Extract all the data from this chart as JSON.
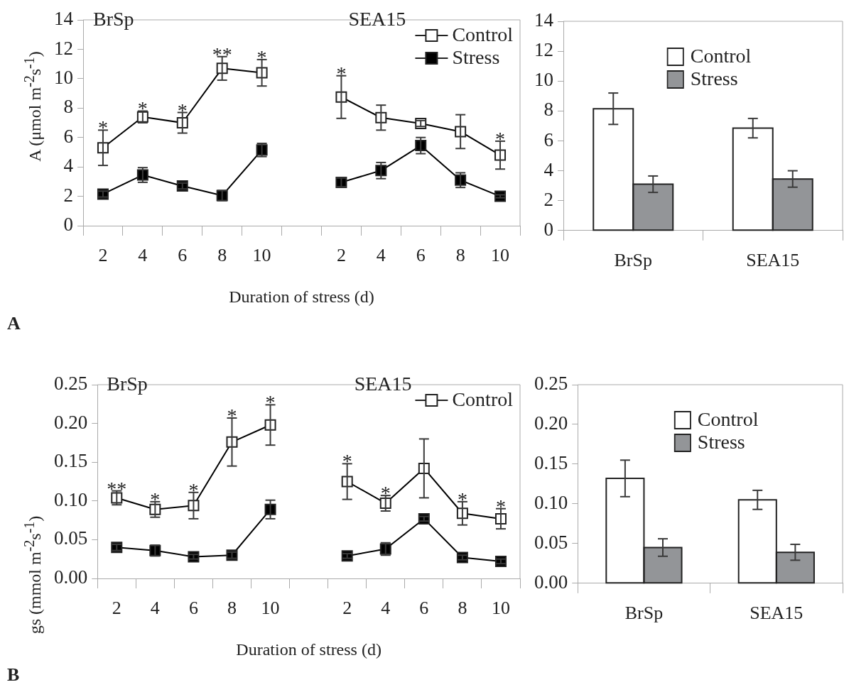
{
  "chart_data": [
    {
      "type": "line",
      "xlabel": "Duration of stress (d)",
      "ylabel": "A (μmol m$^{-2}$s$^{-1}$)",
      "annotations": [
        "BrSp",
        "SEA15",
        "A"
      ],
      "categories": [
        "2",
        "4",
        "6",
        "8",
        "10",
        null,
        "2",
        "4",
        "6",
        "8",
        "10"
      ],
      "ylim": [
        0,
        14
      ],
      "yticks": [
        0,
        2,
        4,
        6,
        8,
        10,
        12,
        14
      ],
      "grid": false,
      "legend": "top right",
      "marker": "square",
      "line_style": "solid",
      "series": [
        {
          "name": "Control",
          "color": "#ffffff",
          "values": [
            5.3,
            7.4,
            7.0,
            10.7,
            10.4,
            null,
            8.75,
            7.35,
            6.95,
            6.4,
            4.8
          ],
          "errors": [
            1.2,
            0.4,
            0.7,
            0.8,
            0.9,
            null,
            1.45,
            0.85,
            0.2,
            1.15,
            0.95
          ],
          "value_labels": [
            "*",
            "*",
            "*",
            "**",
            "*",
            null,
            "*",
            null,
            null,
            null,
            "*"
          ]
        },
        {
          "name": "Stress",
          "color": "#000000",
          "values": [
            2.15,
            3.45,
            2.7,
            2.05,
            5.15,
            null,
            2.95,
            3.75,
            5.45,
            3.1,
            2.0
          ],
          "errors": [
            0.2,
            0.5,
            0.2,
            0.35,
            0.45,
            null,
            0.3,
            0.55,
            0.55,
            0.5,
            0.1
          ]
        }
      ]
    },
    {
      "type": "bar",
      "categories": [
        "BrSp",
        "SEA15"
      ],
      "ylim": [
        0,
        14
      ],
      "yticks": [
        0,
        2,
        4,
        6,
        8,
        10,
        12,
        14
      ],
      "grid": false,
      "legend": "top",
      "series": [
        {
          "name": "Control",
          "color": "#ffffff",
          "values": [
            8.15,
            6.85
          ],
          "errors": [
            1.05,
            0.65
          ]
        },
        {
          "name": "Stress",
          "color": "#939598",
          "values": [
            3.1,
            3.45
          ],
          "errors": [
            0.55,
            0.55
          ]
        }
      ]
    },
    {
      "type": "line",
      "xlabel": "Duration of stress (d)",
      "ylabel": "gs (mmol m$^{-2}$s$^{-1}$)",
      "annotations": [
        "BrSp",
        "SEA15",
        "B"
      ],
      "categories": [
        "2",
        "4",
        "6",
        "8",
        "10",
        null,
        "2",
        "4",
        "6",
        "8",
        "10"
      ],
      "ylim": [
        0,
        0.25
      ],
      "yticks": [
        {
          "value": 0,
          "label": "0.00"
        },
        0.05,
        {
          "value": 0.1,
          "label": "0.10"
        },
        0.15,
        {
          "value": 0.2,
          "label": "0.20"
        },
        0.25
      ],
      "grid": false,
      "legend": "top right",
      "marker": "square",
      "line_style": "solid",
      "series": [
        {
          "name": "Control",
          "color": "#ffffff",
          "values": [
            0.104,
            0.089,
            0.094,
            0.176,
            0.198,
            null,
            0.125,
            0.097,
            0.142,
            0.084,
            0.077
          ],
          "errors": [
            0.009,
            0.01,
            0.017,
            0.031,
            0.026,
            null,
            0.023,
            0.01,
            0.038,
            0.015,
            0.013
          ],
          "value_labels": [
            "**",
            "*",
            "*",
            "*",
            "*",
            null,
            "*",
            "*",
            null,
            "*",
            "*"
          ]
        },
        {
          "color": "#000000",
          "values": [
            0.04,
            0.036,
            0.028,
            0.03,
            0.089,
            null,
            0.029,
            0.038,
            0.077,
            0.027,
            0.022
          ],
          "errors": [
            0.004,
            0.007,
            0.003,
            0.004,
            0.012,
            null,
            0.003,
            0.008,
            0.003,
            0.003,
            0.003
          ]
        }
      ]
    },
    {
      "type": "bar",
      "categories": [
        "BrSp",
        "SEA15"
      ],
      "ylim": [
        0,
        0.25
      ],
      "yticks": [
        {
          "value": 0,
          "label": "0.00"
        },
        0.05,
        {
          "value": 0.1,
          "label": "0.10"
        },
        0.15,
        {
          "value": 0.2,
          "label": "0.20"
        },
        0.25
      ],
      "grid": false,
      "legend": "top",
      "series": [
        {
          "name": "Control",
          "color": "#ffffff",
          "values": [
            0.132,
            0.105
          ],
          "errors": [
            0.023,
            0.012
          ]
        },
        {
          "name": "Stress",
          "color": "#939598",
          "values": [
            0.045,
            0.039
          ],
          "errors": [
            0.011,
            0.01
          ]
        }
      ]
    }
  ]
}
